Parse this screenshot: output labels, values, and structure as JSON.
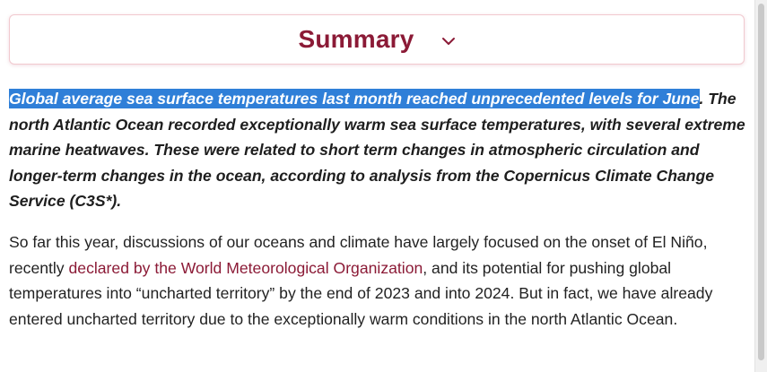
{
  "summary": {
    "title": "Summary",
    "toggle_icon": "chevron-down-icon"
  },
  "lead": {
    "highlighted": "Global average sea surface temperatures last month reached unprecedented levels for June",
    "rest": ". The north Atlantic Ocean recorded exceptionally warm sea surface temperatures, with several extreme marine heatwaves. These were related to short term changes in atmospheric circulation and longer-term changes in the ocean, according to analysis from the Copernicus Climate Change Service (C3S*)."
  },
  "body": {
    "before_link": "So far this year, discussions of our oceans and climate have largely focused on the onset of El Niño, recently ",
    "link_text": "declared by the World Meteorological Organization",
    "after_link": ", and its potential for pushing global temperatures into “uncharted territory” by the end of 2023 and into 2024. But in fact, we have already entered uncharted territory due to the exceptionally warm conditions in the north Atlantic Ocean."
  },
  "colors": {
    "accent": "#8b1a36",
    "selection": "#2f7fd8"
  }
}
